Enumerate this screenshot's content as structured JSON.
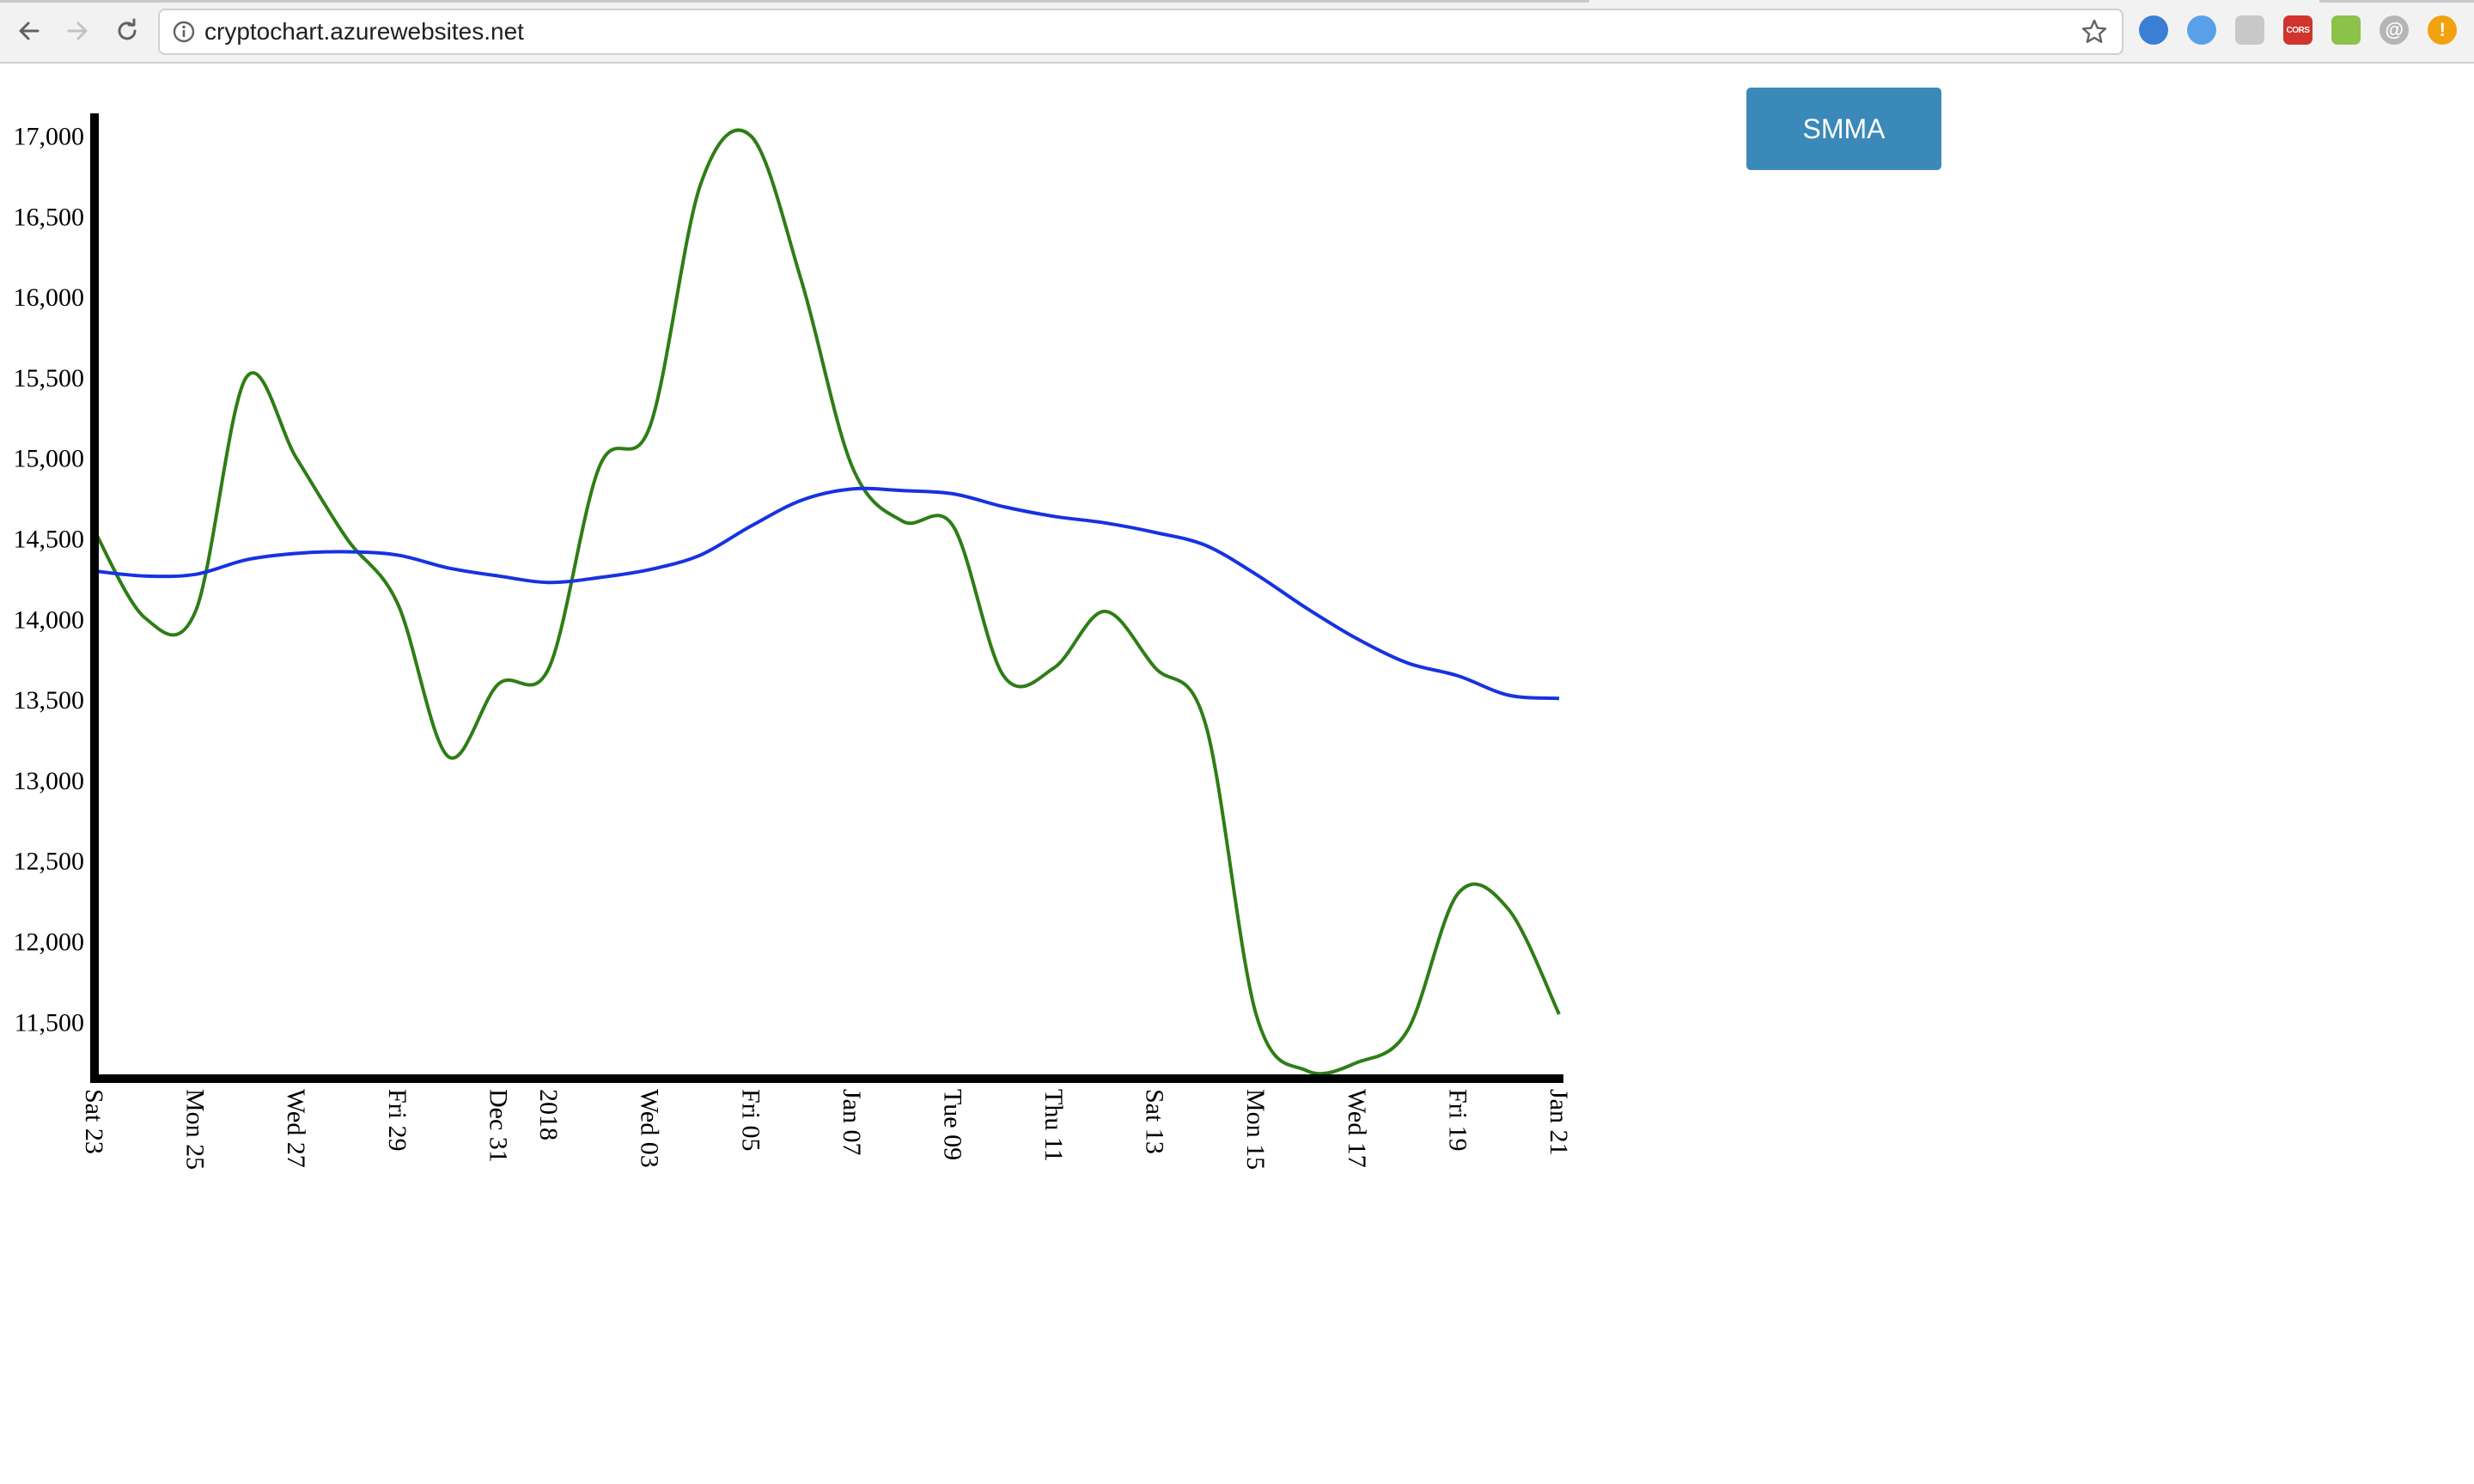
{
  "browser": {
    "url": "cryptochart.azurewebsites.net",
    "extensions": [
      {
        "name": "globe-extension-icon",
        "color": "#3a7fd5",
        "label": ""
      },
      {
        "name": "timer-extension-icon",
        "color": "#5aa0e8",
        "label": ""
      },
      {
        "name": "speaker-extension-icon",
        "color": "#c8c8c8",
        "label": ""
      },
      {
        "name": "cors-extension-icon",
        "color": "#d0342c",
        "label": "CORS"
      },
      {
        "name": "green-extension-icon",
        "color": "#8cc14a",
        "label": ""
      },
      {
        "name": "at-extension-icon",
        "color": "#b5b5b5",
        "label": "@"
      },
      {
        "name": "alert-extension-icon",
        "color": "#f2a20f",
        "label": "!"
      }
    ]
  },
  "controls": {
    "smma_button": "SMMA"
  },
  "chart_data": {
    "type": "line",
    "x_tick_labels": [
      "Sat 23",
      "Mon 25",
      "Wed 27",
      "Fri 29",
      "Dec 31",
      "2018",
      "Wed 03",
      "Fri 05",
      "Jan 07",
      "Tue 09",
      "Thu 11",
      "Sat 13",
      "Mon 15",
      "Wed 17",
      "Fri 19",
      "Jan 21"
    ],
    "x": [
      "Dec 23",
      "Dec 24",
      "Dec 25",
      "Dec 26",
      "Dec 27",
      "Dec 28",
      "Dec 29",
      "Dec 30",
      "Dec 31",
      "Jan 01",
      "Jan 02",
      "Jan 03",
      "Jan 04",
      "Jan 05",
      "Jan 06",
      "Jan 07",
      "Jan 08",
      "Jan 09",
      "Jan 10",
      "Jan 11",
      "Jan 12",
      "Jan 13",
      "Jan 14",
      "Jan 15",
      "Jan 16",
      "Jan 17",
      "Jan 18",
      "Jan 19",
      "Jan 20",
      "Jan 21"
    ],
    "series": [
      {
        "color": "#2e7d16",
        "values": [
          14550,
          14010,
          14050,
          15500,
          15000,
          14500,
          14100,
          13150,
          13600,
          13700,
          14950,
          15200,
          16700,
          17000,
          16100,
          14950,
          14610,
          14580,
          13650,
          13700,
          14050,
          13700,
          13350,
          11550,
          11200,
          11250,
          11450,
          12300,
          12200,
          11550
        ]
      },
      {
        "color": "#1732e0",
        "values": [
          14300,
          14270,
          14280,
          14370,
          14410,
          14420,
          14400,
          14320,
          14270,
          14230,
          14260,
          14310,
          14400,
          14580,
          14740,
          14810,
          14800,
          14780,
          14700,
          14640,
          14600,
          14540,
          14460,
          14280,
          14070,
          13880,
          13730,
          13650,
          13530,
          13510
        ]
      }
    ],
    "y_ticks": [
      11500,
      12000,
      12500,
      13000,
      13500,
      14000,
      14500,
      15000,
      15500,
      16000,
      16500,
      17000
    ],
    "ylim": [
      11150,
      17120
    ],
    "grid": false,
    "legend": "none"
  }
}
